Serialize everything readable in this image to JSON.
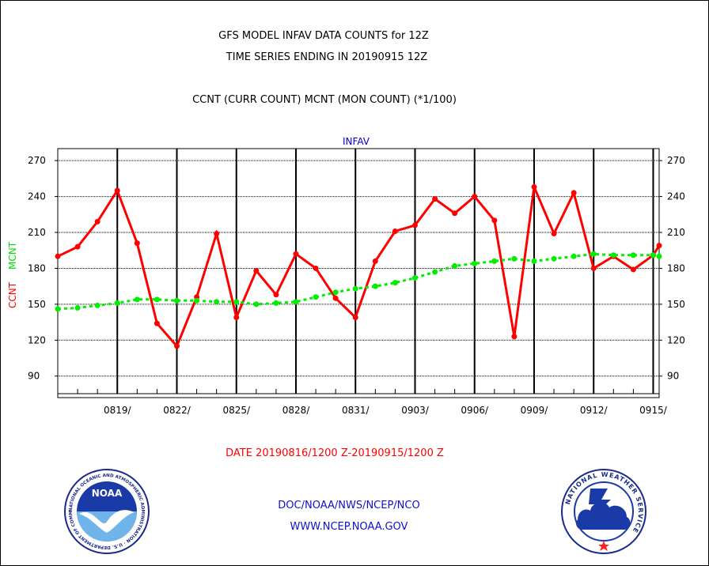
{
  "header": {
    "line1": "GFS MODEL INFAV DATA COUNTS for 12Z",
    "line2": "TIME SERIES ENDING IN 20190915 12Z",
    "line3": "CCNT (CURR COUNT) MCNT (MON COUNT) (*1/100)"
  },
  "footer": {
    "date_range": "DATE 20190816/1200 Z-20190915/1200 Z",
    "org": "DOC/NOAA/NWS/NCEP/NCO",
    "url": "WWW.NCEP.NOAA.GOV"
  },
  "logos": {
    "noaa_text": "NOAA",
    "noaa_ring": "NATIONAL OCEANIC AND ATMOSPHERIC ADMINISTRATION · U.S. DEPARTMENT OF COMMERCE",
    "nws_ring": "NATIONAL WEATHER SERVICE"
  },
  "chart_data": {
    "type": "line",
    "title": "INFAV",
    "ylabel_left": "CCNT",
    "ylabel_right": "MCNT",
    "ylim": [
      72,
      280
    ],
    "yticks": [
      90,
      120,
      150,
      180,
      210,
      240,
      270
    ],
    "x_day_range": [
      0,
      30.3
    ],
    "x_tick_labels": [
      "0819/",
      "0822/",
      "0825/",
      "0828/",
      "0831/",
      "0903/",
      "0906/",
      "0909/",
      "0912/",
      "0915/"
    ],
    "x_tick_days": [
      3,
      6,
      9,
      12,
      15,
      18,
      21,
      24,
      27,
      30
    ],
    "grid": true,
    "series": [
      {
        "name": "CCNT",
        "color": "#ff0000",
        "style": "solid",
        "days": [
          0,
          1,
          2,
          3,
          4,
          5,
          6,
          7,
          8,
          9,
          10,
          11,
          12,
          13,
          14,
          15,
          16,
          17,
          18,
          19,
          20,
          21,
          22,
          23,
          24,
          25,
          26,
          27,
          28,
          29,
          30,
          30.3
        ],
        "values": [
          190,
          198,
          219,
          245,
          201,
          134,
          115,
          156,
          209,
          139,
          178,
          158,
          192,
          180,
          155,
          139,
          186,
          211,
          216,
          238,
          226,
          240,
          220,
          123,
          248,
          209,
          243,
          180,
          190,
          179,
          191,
          199
        ]
      },
      {
        "name": "MCNT",
        "color": "#00ee00",
        "style": "dotted",
        "days": [
          0,
          1,
          2,
          3,
          4,
          5,
          6,
          7,
          8,
          9,
          10,
          11,
          12,
          13,
          14,
          15,
          16,
          17,
          18,
          19,
          20,
          21,
          22,
          23,
          24,
          25,
          26,
          27,
          28,
          29,
          30,
          30.3
        ],
        "values": [
          146,
          147,
          149,
          151,
          154,
          154,
          153,
          153,
          152,
          152,
          150,
          151,
          152,
          156,
          160,
          163,
          165,
          168,
          172,
          177,
          182,
          184,
          186,
          188,
          186,
          188,
          190,
          192,
          191,
          191,
          191,
          190
        ]
      }
    ]
  }
}
